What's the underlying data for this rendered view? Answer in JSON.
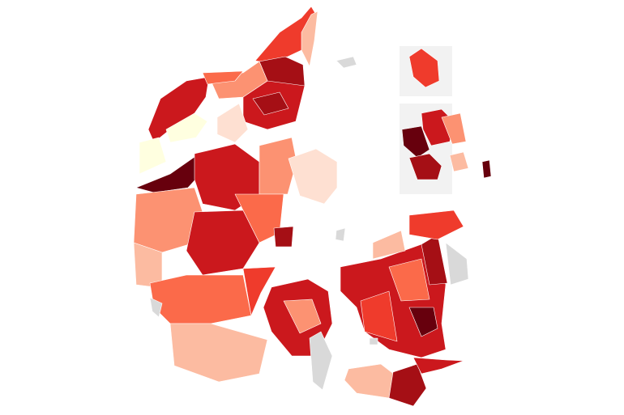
{
  "map": {
    "type": "choropleth",
    "palette": {
      "l0": "#ffffe0",
      "l1": "#fee0d2",
      "l2": "#fcbba1",
      "l3": "#fc9272",
      "l4": "#fb6a4a",
      "l5": "#ef3b2c",
      "l6": "#cb181d",
      "l7": "#a50f15",
      "l8": "#67000d",
      "nodata": "#d9d9d9",
      "inset_background": "#f2f2f2"
    },
    "insets": [
      "bornholm",
      "copenhagen"
    ],
    "regions": [
      "l5",
      "l2",
      "l7",
      "l6",
      "l6",
      "l3",
      "l0",
      "l0",
      "l8",
      "l1",
      "l6",
      "l3",
      "l1",
      "l3",
      "l2",
      "l6",
      "l4",
      "l7",
      "l4",
      "l2",
      "l5",
      "l6",
      "l3",
      "l6",
      "l5",
      "l4",
      "l8",
      "l7",
      "l2",
      "l5",
      "l2",
      "l7",
      "l6",
      "l4",
      "l7",
      "l5",
      "l8",
      "l6",
      "l3",
      "l7",
      "nodata",
      "nodata",
      "nodata",
      "nodata",
      "nodata",
      "nodata",
      "l8",
      "l2"
    ]
  }
}
